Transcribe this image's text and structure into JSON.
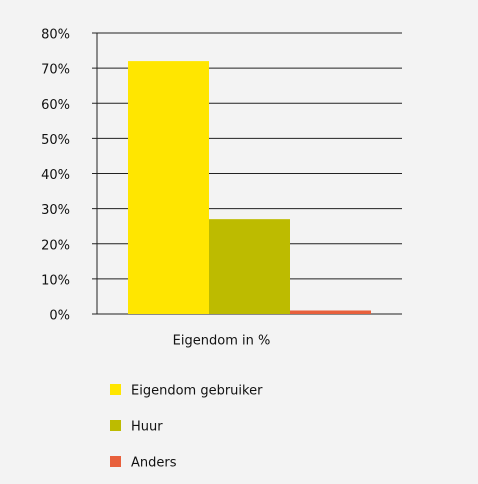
{
  "chart_data": {
    "type": "bar",
    "categories": [
      "Eigendom in %"
    ],
    "series": [
      {
        "name": "Eigendom gebruiker",
        "color": "#ffe600",
        "values": [
          72
        ]
      },
      {
        "name": "Huur",
        "color": "#bdbb00",
        "values": [
          27
        ]
      },
      {
        "name": "Anders",
        "color": "#e8603c",
        "values": [
          1
        ]
      }
    ],
    "ylim": [
      0,
      80
    ],
    "yticks": [
      {
        "value": 0,
        "label": "0%"
      },
      {
        "value": 10,
        "label": "10%"
      },
      {
        "value": 20,
        "label": "20%"
      },
      {
        "value": 30,
        "label": "30%"
      },
      {
        "value": 40,
        "label": "40%"
      },
      {
        "value": 50,
        "label": "50%"
      },
      {
        "value": 60,
        "label": "60%"
      },
      {
        "value": 70,
        "label": "70%"
      },
      {
        "value": 80,
        "label": "80%"
      }
    ],
    "grid": true
  }
}
